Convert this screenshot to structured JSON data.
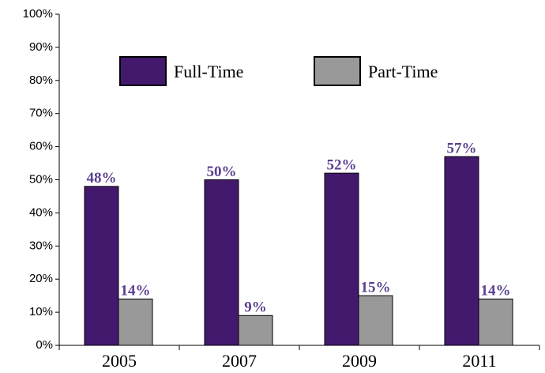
{
  "chart_data": {
    "type": "bar",
    "categories": [
      "2005",
      "2007",
      "2009",
      "2011"
    ],
    "series": [
      {
        "name": "Full-Time",
        "color": "#43196e",
        "values": [
          48,
          50,
          52,
          57
        ],
        "value_labels": [
          "48%",
          "50%",
          "52%",
          "57%"
        ]
      },
      {
        "name": "Part-Time",
        "color": "#999999",
        "values": [
          14,
          9,
          15,
          14
        ],
        "value_labels": [
          "14%",
          "9%",
          "15%",
          "14%"
        ]
      }
    ],
    "ylim": [
      0,
      100
    ],
    "yticks": [
      {
        "value": 0,
        "label": "0%"
      },
      {
        "value": 10,
        "label": "10%"
      },
      {
        "value": 20,
        "label": "20%"
      },
      {
        "value": 30,
        "label": "30%"
      },
      {
        "value": 40,
        "label": "40%"
      },
      {
        "value": 50,
        "label": "50%"
      },
      {
        "value": 60,
        "label": "60%"
      },
      {
        "value": 70,
        "label": "70%"
      },
      {
        "value": 80,
        "label": "80%"
      },
      {
        "value": 90,
        "label": "90%"
      },
      {
        "value": 100,
        "label": "100%"
      }
    ],
    "grid": false,
    "legend": "top"
  }
}
